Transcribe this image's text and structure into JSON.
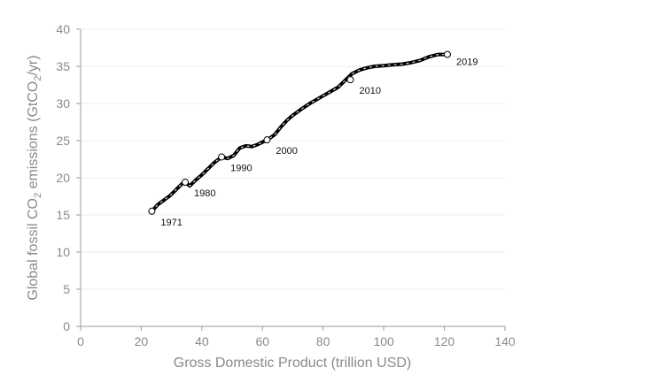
{
  "chart_data": {
    "type": "line",
    "xlabel": "Gross Domestic Product (trillion USD)",
    "ylabel": {
      "pre": "Global fossil CO",
      "sub": "2",
      "mid": " emissions (GtCO",
      "sub2": "2",
      "post": "/yr)"
    },
    "xlim": [
      0,
      140
    ],
    "ylim": [
      0,
      40
    ],
    "xticks": [
      0,
      20,
      40,
      60,
      80,
      100,
      120,
      140
    ],
    "yticks": [
      0,
      5,
      10,
      15,
      20,
      25,
      30,
      35,
      40
    ],
    "grid": "horizontal",
    "series": [
      {
        "x": [
          23.5,
          25.5,
          27.5,
          29.5,
          31.5,
          33.5,
          34.5,
          36.0,
          38.0,
          40.0,
          42.0,
          44.0,
          46.5,
          48.5,
          50.5,
          52.5,
          54.5,
          56.5,
          58.5,
          60.5,
          62.0,
          64.0,
          66.0,
          68.0,
          70.0,
          73.0,
          76.0,
          79.0,
          82.0,
          85.0,
          87.5,
          89.5,
          92.0,
          94.5,
          97.0,
          100.0,
          103.0,
          106.0,
          109.0,
          112.0,
          115.0,
          118.0,
          121.0
        ],
        "y": [
          15.5,
          16.4,
          17.0,
          17.6,
          18.4,
          19.2,
          19.4,
          18.9,
          19.7,
          20.4,
          21.2,
          22.0,
          22.8,
          22.6,
          23.0,
          24.0,
          24.3,
          24.2,
          24.5,
          24.9,
          25.2,
          25.8,
          26.8,
          27.7,
          28.4,
          29.3,
          30.1,
          30.8,
          31.5,
          32.2,
          33.2,
          34.0,
          34.5,
          34.8,
          35.0,
          35.1,
          35.2,
          35.3,
          35.5,
          35.8,
          36.3,
          36.6,
          36.6
        ]
      }
    ],
    "annotations": [
      {
        "year": "1971",
        "x": 23.5,
        "y": 15.5
      },
      {
        "year": "1980",
        "x": 34.5,
        "y": 19.4
      },
      {
        "year": "1990",
        "x": 46.5,
        "y": 22.8
      },
      {
        "year": "2000",
        "x": 61.5,
        "y": 25.1
      },
      {
        "year": "2010",
        "x": 89.0,
        "y": 33.2
      },
      {
        "year": "2019",
        "x": 121.0,
        "y": 36.6
      }
    ]
  }
}
